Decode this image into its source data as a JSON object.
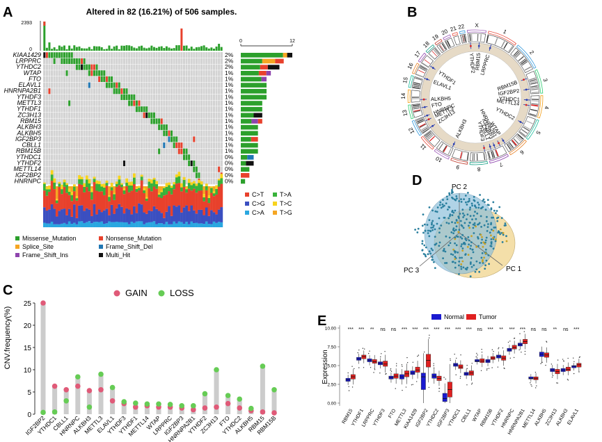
{
  "panels": {
    "a": "A",
    "b": "B",
    "c": "C",
    "d": "D",
    "e": "E"
  },
  "colors": {
    "missense": "#2ca02c",
    "nonsense": "#e8412c",
    "splice": "#f5a623",
    "fs_del": "#1f77b4",
    "fs_ins": "#8e44ad",
    "multi": "#111111",
    "cnv_gain": "#e05a78",
    "cnv_loss": "#66cc55",
    "cnv_bar": "#cccccc",
    "normal": "#1a1ad0",
    "tumor": "#e02020",
    "c_t": "#e8412c",
    "c_g": "#3b4fc0",
    "c_a": "#2aa7e0",
    "t_a": "#38b23a",
    "t_c": "#f7d31e",
    "t_g": "#f5a623"
  },
  "chart_data": [
    {
      "type": "heatmap",
      "id": "oncoplot",
      "title": "Altered in 82 (16.21%) of 506 samples.",
      "top_axis_labels": [
        "2393",
        "0"
      ],
      "right_axis_labels": [
        "0",
        "12"
      ],
      "genes": [
        {
          "name": "KIAA1429",
          "pct": "2%",
          "count": 12
        },
        {
          "name": "LRPPRC",
          "pct": "2%",
          "count": 10
        },
        {
          "name": "YTHDC2",
          "pct": "2%",
          "count": 9
        },
        {
          "name": "WTAP",
          "pct": "1%",
          "count": 7
        },
        {
          "name": "FTO",
          "pct": "1%",
          "count": 6
        },
        {
          "name": "ELAVL1",
          "pct": "1%",
          "count": 6
        },
        {
          "name": "HNRNPA2B1",
          "pct": "1%",
          "count": 6
        },
        {
          "name": "YTHDF3",
          "pct": "1%",
          "count": 6
        },
        {
          "name": "METTL3",
          "pct": "1%",
          "count": 5
        },
        {
          "name": "YTHDF1",
          "pct": "1%",
          "count": 5
        },
        {
          "name": "ZC3H13",
          "pct": "1%",
          "count": 5
        },
        {
          "name": "RBM15",
          "pct": "1%",
          "count": 5
        },
        {
          "name": "ALKBH3",
          "pct": "1%",
          "count": 4
        },
        {
          "name": "ALKBH5",
          "pct": "1%",
          "count": 4
        },
        {
          "name": "IGF2BP3",
          "pct": "1%",
          "count": 4
        },
        {
          "name": "CBLL1",
          "pct": "1%",
          "count": 4
        },
        {
          "name": "RBM15B",
          "pct": "1%",
          "count": 4
        },
        {
          "name": "YTHDC1",
          "pct": "0%",
          "count": 3
        },
        {
          "name": "YTHDF2",
          "pct": "0%",
          "count": 3
        },
        {
          "name": "METTL14",
          "pct": "0%",
          "count": 2
        },
        {
          "name": "IGF2BP2",
          "pct": "0%",
          "count": 2
        },
        {
          "name": "HNRNPC",
          "pct": "0%",
          "count": 1
        }
      ],
      "tmb_legend": [
        "C>T",
        "C>G",
        "C>A",
        "T>A",
        "T>C",
        "T>G"
      ],
      "variant_legend": [
        "Missense_Mutation",
        "Nonsense_Mutation",
        "Splice_Site",
        "Frame_Shift_Del",
        "Frame_Shift_Ins",
        "Multi_Hit"
      ]
    },
    {
      "type": "other",
      "id": "circos",
      "chromosomes": [
        "X",
        "1",
        "2",
        "3",
        "4",
        "5",
        "6",
        "7",
        "8",
        "9",
        "10",
        "11",
        "12",
        "13",
        "14",
        "15",
        "16",
        "17",
        "18",
        "19",
        "20",
        "21",
        "22"
      ],
      "genes": [
        "YTHDF2",
        "RBM15",
        "LRPPRC",
        "RBM15B",
        "IGF2BP2",
        "YTHDC1",
        "METTL14",
        "YTHDC2",
        "WTAP",
        "HNRNPA2B1",
        "IGF2BP3",
        "CBLL1",
        "YTHDF3",
        "ALKBH3",
        "ZC3H13",
        "METTL3",
        "HNRNPC",
        "FTO",
        "ALKBH5",
        "ELAVL1",
        "YTHDF1"
      ]
    },
    {
      "type": "scatter",
      "id": "pca",
      "axis_labels": [
        "PC 2",
        "PC 3",
        "PC 1"
      ]
    },
    {
      "type": "scatter",
      "id": "cnv",
      "ylabel": "CNV.frequency(%)",
      "ylim": [
        0,
        25
      ],
      "yticks": [
        "0",
        "5",
        "10",
        "15",
        "20",
        "25"
      ],
      "legend": [
        "GAIN",
        "LOSS"
      ],
      "categories": [
        "IGF2BP2",
        "YTHDC1",
        "CBLL1",
        "HNRNPC",
        "ALKBH3",
        "METTL3",
        "ELAVL1",
        "YTHDF3",
        "YTHDF1",
        "METTL14",
        "WTAP",
        "LRPPRC",
        "IGF2BP3",
        "HNRNPA2B1",
        "YTHDF2",
        "ZC3H13",
        "FTO",
        "YTHDC2",
        "ALKBH5",
        "RBM15",
        "RBM15B"
      ],
      "gain": [
        25.0,
        6.3,
        5.5,
        6.3,
        5.3,
        5.5,
        3.0,
        2.4,
        1.6,
        1.9,
        1.6,
        1.6,
        1.4,
        1.0,
        1.4,
        1.6,
        2.4,
        1.4,
        0.8,
        0.5,
        0.3
      ],
      "loss": [
        0.4,
        0.5,
        3.0,
        8.4,
        1.6,
        9.0,
        6.0,
        2.8,
        2.5,
        2.3,
        2.3,
        2.2,
        1.9,
        1.9,
        4.6,
        10.0,
        4.2,
        3.4,
        1.3,
        10.8,
        5.5
      ]
    },
    {
      "type": "bar",
      "id": "expression",
      "ylabel": "Expression",
      "ylim": [
        0,
        10
      ],
      "yticks": [
        "0.00",
        "2.50",
        "5.00",
        "7.50",
        "10.00"
      ],
      "legend": [
        "Normal",
        "Tumor"
      ],
      "categories": [
        "RBM15",
        "YTHDF1",
        "LRPPRC",
        "YTHDF3",
        "FTO",
        "METTL3",
        "KIAA1429",
        "IGF2BP2",
        "YTHDC2",
        "IGF2BP3",
        "YTHDC1",
        "CBLL1",
        "WTAP",
        "RBM15B",
        "YTHDF2",
        "HNRNPC",
        "HNRNPA2B1",
        "METTL14",
        "ALKBH5",
        "ZC3H13",
        "ALKBH3",
        "ELAVL1"
      ],
      "significance": [
        "***",
        "***",
        "**",
        "ns",
        "ns",
        "***",
        "***",
        "***",
        "***",
        "***",
        "***",
        "***",
        "ns",
        "***",
        "**",
        "***",
        "***",
        "ns",
        "ns",
        "**",
        "ns",
        "***"
      ],
      "normal": [
        {
          "q1": 2.9,
          "med": 3.1,
          "q3": 3.3
        },
        {
          "q1": 5.7,
          "med": 5.9,
          "q3": 6.1
        },
        {
          "q1": 5.5,
          "med": 5.7,
          "q3": 5.9
        },
        {
          "q1": 5.1,
          "med": 5.3,
          "q3": 5.5
        },
        {
          "q1": 3.2,
          "med": 3.4,
          "q3": 3.6
        },
        {
          "q1": 3.2,
          "med": 3.5,
          "q3": 3.8
        },
        {
          "q1": 3.8,
          "med": 4.0,
          "q3": 4.3
        },
        {
          "q1": 1.8,
          "med": 3.5,
          "q3": 4.0
        },
        {
          "q1": 3.3,
          "med": 3.6,
          "q3": 3.9
        },
        {
          "q1": 0.2,
          "med": 0.6,
          "q3": 1.3
        },
        {
          "q1": 4.9,
          "med": 5.1,
          "q3": 5.3
        },
        {
          "q1": 3.7,
          "med": 3.9,
          "q3": 4.1
        },
        {
          "q1": 5.5,
          "med": 5.6,
          "q3": 5.8
        },
        {
          "q1": 5.4,
          "med": 5.6,
          "q3": 5.8
        },
        {
          "q1": 6.0,
          "med": 6.2,
          "q3": 6.4
        },
        {
          "q1": 6.9,
          "med": 7.1,
          "q3": 7.3
        },
        {
          "q1": 7.6,
          "med": 7.8,
          "q3": 8.0
        },
        {
          "q1": 3.2,
          "med": 3.3,
          "q3": 3.5
        },
        {
          "q1": 6.2,
          "med": 6.5,
          "q3": 6.8
        },
        {
          "q1": 4.2,
          "med": 4.4,
          "q3": 4.6
        },
        {
          "q1": 4.2,
          "med": 4.4,
          "q3": 4.6
        },
        {
          "q1": 4.7,
          "med": 4.9,
          "q3": 5.0
        }
      ],
      "tumor": [
        {
          "q1": 3.2,
          "med": 3.5,
          "q3": 3.8
        },
        {
          "q1": 5.9,
          "med": 6.2,
          "q3": 6.4
        },
        {
          "q1": 5.3,
          "med": 5.5,
          "q3": 5.8
        },
        {
          "q1": 4.9,
          "med": 5.2,
          "q3": 5.6
        },
        {
          "q1": 3.3,
          "med": 3.6,
          "q3": 3.9
        },
        {
          "q1": 3.5,
          "med": 3.9,
          "q3": 4.3
        },
        {
          "q1": 4.1,
          "med": 4.4,
          "q3": 4.8
        },
        {
          "q1": 4.8,
          "med": 5.7,
          "q3": 6.5
        },
        {
          "q1": 3.0,
          "med": 3.3,
          "q3": 3.6
        },
        {
          "q1": 0.8,
          "med": 1.8,
          "q3": 2.8
        },
        {
          "q1": 4.6,
          "med": 4.8,
          "q3": 5.1
        },
        {
          "q1": 3.7,
          "med": 4.0,
          "q3": 4.3
        },
        {
          "q1": 5.4,
          "med": 5.6,
          "q3": 5.9
        },
        {
          "q1": 5.8,
          "med": 6.0,
          "q3": 6.2
        },
        {
          "q1": 5.7,
          "med": 6.0,
          "q3": 6.3
        },
        {
          "q1": 7.2,
          "med": 7.4,
          "q3": 7.7
        },
        {
          "q1": 7.9,
          "med": 8.2,
          "q3": 8.5
        },
        {
          "q1": 3.1,
          "med": 3.3,
          "q3": 3.5
        },
        {
          "q1": 6.1,
          "med": 6.4,
          "q3": 6.7
        },
        {
          "q1": 3.9,
          "med": 4.2,
          "q3": 4.5
        },
        {
          "q1": 4.3,
          "med": 4.5,
          "q3": 4.8
        },
        {
          "q1": 4.8,
          "med": 5.1,
          "q3": 5.3
        }
      ]
    }
  ]
}
